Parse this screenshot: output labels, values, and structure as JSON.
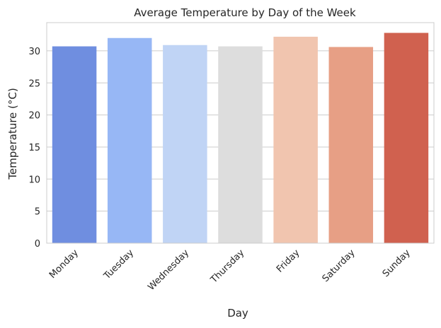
{
  "chart_data": {
    "type": "bar",
    "title": "Average Temperature by Day of the Week",
    "xlabel": "Day",
    "ylabel": "Temperature (°C)",
    "categories": [
      "Monday",
      "Tuesday",
      "Wednesday",
      "Thursday",
      "Friday",
      "Saturday",
      "Sunday"
    ],
    "values": [
      30.7,
      32.0,
      30.9,
      30.7,
      32.2,
      30.6,
      32.8
    ],
    "colors": [
      "#6f8ee0",
      "#97b7f5",
      "#c0d4f5",
      "#dddddd",
      "#f1c5af",
      "#e79f85",
      "#d0614f"
    ],
    "ylim": [
      0,
      34.4
    ],
    "yticks": [
      0,
      5,
      10,
      15,
      20,
      25,
      30
    ],
    "grid": "horizontal",
    "legend": "none"
  }
}
